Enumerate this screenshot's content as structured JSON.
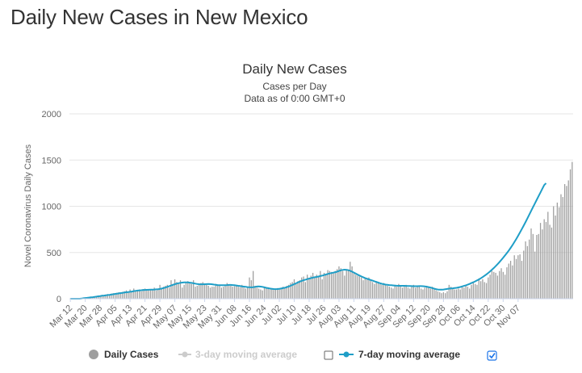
{
  "page": {
    "title": "Daily New Cases in New Mexico"
  },
  "chart_data": {
    "type": "bar",
    "title": "Daily New Cases",
    "subtitle": "Cases per Day",
    "subtitle2": "Data as of 0:00 GMT+0",
    "ylabel": "Novel Coronavirus Daily Cases",
    "xlabel": "",
    "ylim": [
      0,
      2000
    ],
    "yticks": [
      0,
      500,
      1000,
      1500,
      2000
    ],
    "grid": true,
    "legend_position": "bottom",
    "x_tick_labels": [
      "Mar 12",
      "Mar 20",
      "Mar 28",
      "Apr 05",
      "Apr 13",
      "Apr 21",
      "Apr 29",
      "May 07",
      "May 15",
      "May 23",
      "May 31",
      "Jun 08",
      "Jun 16",
      "Jun 24",
      "Jul 02",
      "Jul 10",
      "Jul 18",
      "Jul 26",
      "Aug 03",
      "Aug 11",
      "Aug 19",
      "Aug 27",
      "Sep 04",
      "Sep 12",
      "Sep 20",
      "Sep 28",
      "Oct 06",
      "Oct 14",
      "Oct 22",
      "Oct 30",
      "Nov 07"
    ],
    "start_date": "2020-03-12",
    "series": [
      {
        "name": "Daily Cases",
        "kind": "bar",
        "color": "#9e9e9e",
        "values": [
          0,
          0,
          0,
          0,
          0,
          0,
          5,
          8,
          10,
          12,
          15,
          18,
          20,
          25,
          30,
          35,
          30,
          40,
          35,
          45,
          50,
          45,
          55,
          60,
          50,
          65,
          70,
          60,
          75,
          80,
          90,
          70,
          100,
          80,
          110,
          90,
          95,
          100,
          80,
          105,
          110,
          100,
          90,
          100,
          95,
          120,
          90,
          110,
          150,
          110,
          130,
          140,
          150,
          120,
          200,
          160,
          210,
          180,
          160,
          200,
          120,
          150,
          170,
          190,
          180,
          160,
          200,
          130,
          140,
          150,
          170,
          180,
          160,
          150,
          140,
          120,
          130,
          130,
          160,
          150,
          140,
          120,
          130,
          145,
          170,
          150,
          140,
          130,
          135,
          140,
          130,
          125,
          150,
          120,
          110,
          120,
          230,
          200,
          300,
          140,
          120,
          110,
          100,
          90,
          130,
          110,
          120,
          100,
          110,
          95,
          100,
          115,
          100,
          120,
          130,
          120,
          140,
          150,
          170,
          180,
          210,
          160,
          190,
          200,
          230,
          240,
          180,
          260,
          220,
          250,
          280,
          240,
          260,
          240,
          300,
          210,
          280,
          270,
          310,
          300,
          290,
          280,
          300,
          320,
          350,
          330,
          300,
          250,
          320,
          310,
          400,
          350,
          280,
          260,
          250,
          240,
          230,
          200,
          220,
          210,
          230,
          200,
          180,
          160,
          190,
          170,
          160,
          150,
          170,
          150,
          140,
          130,
          120,
          110,
          150,
          130,
          160,
          140,
          120,
          130,
          150,
          120,
          110,
          130,
          150,
          120,
          140,
          130,
          110,
          100,
          120,
          140,
          120,
          110,
          130,
          100,
          90,
          80,
          70,
          60,
          70,
          60,
          80,
          150,
          130,
          110,
          100,
          100,
          110,
          100,
          130,
          120,
          140,
          130,
          110,
          150,
          170,
          160,
          150,
          220,
          190,
          210,
          180,
          170,
          230,
          260,
          300,
          290,
          280,
          250,
          300,
          330,
          290,
          260,
          340,
          380,
          410,
          360,
          470,
          430,
          470,
          480,
          410,
          520,
          620,
          570,
          640,
          760,
          700,
          510,
          690,
          700,
          820,
          750,
          860,
          830,
          940,
          800,
          770,
          1000,
          900,
          1040,
          990,
          1130,
          1100,
          1240,
          1220,
          1280,
          1400,
          1480
        ]
      },
      {
        "name": "7-day moving average",
        "kind": "line",
        "color": "#1f9ec7",
        "values": [
          0,
          0,
          0,
          0,
          0,
          0,
          2,
          5,
          8,
          10,
          12,
          15,
          17,
          20,
          23,
          26,
          29,
          32,
          34,
          37,
          40,
          42,
          45,
          48,
          52,
          55,
          58,
          61,
          64,
          67,
          70,
          72,
          75,
          78,
          82,
          85,
          88,
          90,
          92,
          94,
          95,
          96,
          97,
          98,
          99,
          100,
          101,
          103,
          106,
          110,
          115,
          121,
          128,
          135,
          143,
          150,
          157,
          163,
          168,
          172,
          175,
          176,
          177,
          176,
          174,
          171,
          167,
          163,
          159,
          157,
          156,
          156,
          157,
          158,
          159,
          158,
          156,
          153,
          150,
          148,
          147,
          146,
          146,
          147,
          148,
          149,
          149,
          148,
          146,
          143,
          140,
          137,
          134,
          131,
          128,
          126,
          124,
          123,
          125,
          128,
          132,
          133,
          131,
          128,
          123,
          118,
          114,
          110,
          107,
          105,
          104,
          105,
          107,
          110,
          114,
          119,
          125,
          132,
          140,
          149,
          158,
          167,
          176,
          185,
          193,
          200,
          206,
          212,
          218,
          223,
          228,
          232,
          236,
          240,
          245,
          250,
          256,
          262,
          268,
          273,
          278,
          282,
          287,
          293,
          300,
          307,
          312,
          314,
          313,
          309,
          302,
          293,
          283,
          272,
          261,
          251,
          241,
          232,
          224,
          217,
          210,
          203,
          196,
          189,
          182,
          175,
          168,
          162,
          157,
          153,
          150,
          148,
          146,
          144,
          142,
          141,
          140,
          140,
          140,
          140,
          139,
          138,
          137,
          136,
          135,
          135,
          135,
          136,
          136,
          135,
          133,
          130,
          126,
          121,
          115,
          109,
          104,
          100,
          98,
          98,
          100,
          103,
          106,
          109,
          111,
          113,
          115,
          118,
          122,
          127,
          133,
          139,
          145,
          152,
          160,
          169,
          178,
          188,
          198,
          209,
          221,
          234,
          248,
          263,
          279,
          296,
          314,
          333,
          353,
          374,
          396,
          419,
          443,
          468,
          494,
          521,
          550,
          580,
          612,
          645,
          680,
          716,
          753,
          791,
          830,
          870,
          910,
          950,
          990,
          1030,
          1070,
          1110,
          1150,
          1190,
          1230,
          1250
        ]
      }
    ]
  },
  "legend": {
    "items": [
      {
        "label": "Daily Cases",
        "color": "#9e9e9e",
        "state": "active"
      },
      {
        "label": "3-day moving average",
        "color": "#cccccc",
        "state": "inactive",
        "checked": false
      },
      {
        "label": "7-day moving average",
        "color": "#1f9ec7",
        "state": "active",
        "checked": true
      }
    ]
  }
}
